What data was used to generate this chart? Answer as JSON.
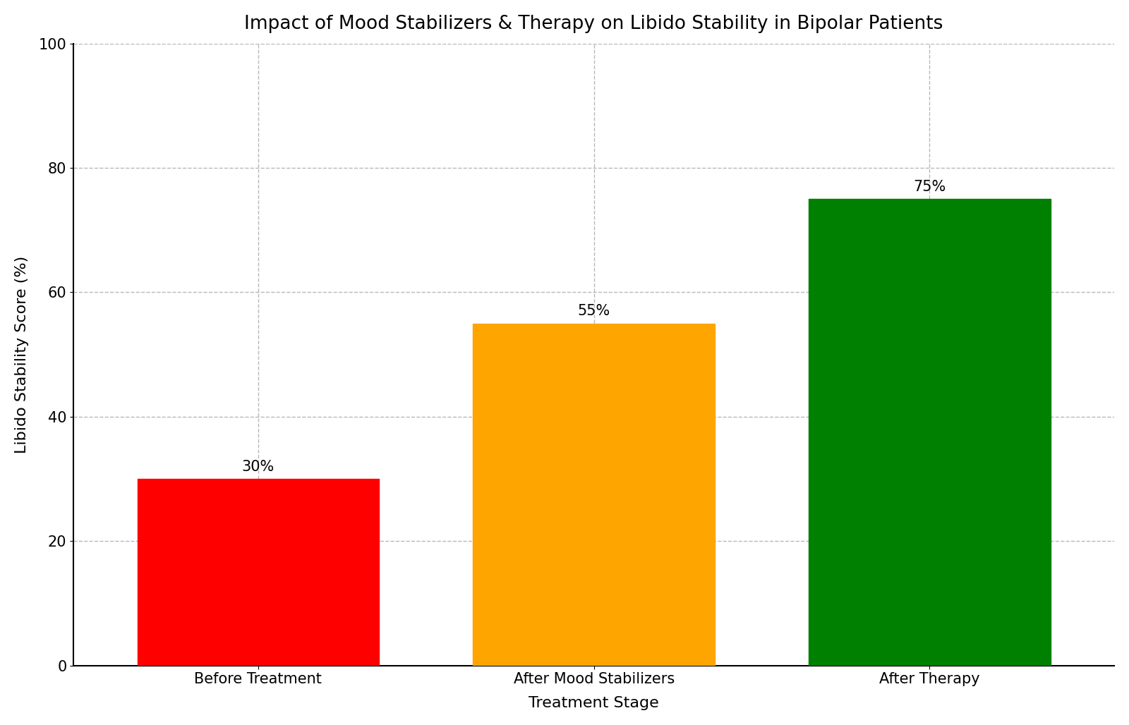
{
  "title": "Impact of Mood Stabilizers & Therapy on Libido Stability in Bipolar Patients",
  "xlabel": "Treatment Stage",
  "ylabel": "Libido Stability Score (%)",
  "categories": [
    "Before Treatment",
    "After Mood Stabilizers\n",
    "After Therapy"
  ],
  "categories_display": [
    "Before Treatment",
    "After Mood Stabilizers",
    "After Therapy"
  ],
  "values": [
    30,
    55,
    75
  ],
  "bar_colors": [
    "#ff0000",
    "#ffa500",
    "#008000"
  ],
  "bar_labels": [
    "30%",
    "55%",
    "75%"
  ],
  "ylim": [
    0,
    100
  ],
  "yticks": [
    0,
    20,
    40,
    60,
    80,
    100
  ],
  "title_fontsize": 19,
  "label_fontsize": 16,
  "tick_fontsize": 15,
  "annotation_fontsize": 15,
  "bar_width": 0.72,
  "background_color": "#ffffff",
  "spine_color": "#000000",
  "grid_color": "#b0b0b0",
  "grid_linestyle": "--",
  "grid_alpha": 0.9
}
